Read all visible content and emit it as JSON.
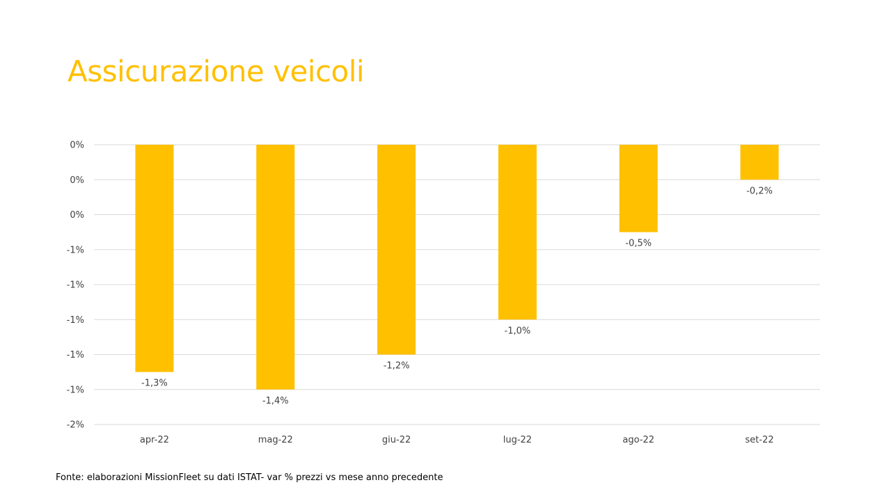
{
  "slide": {
    "title": "Assicurazione veicoli",
    "source": "Fonte: elaborazioni MissionFleet su dati ISTAT- var % prezzi vs mese anno precedente"
  },
  "chart_data": {
    "type": "bar",
    "title": "Assicurazione veicoli",
    "xlabel": "",
    "ylabel": "",
    "categories": [
      "apr-22",
      "mag-22",
      "giu-22",
      "lug-22",
      "ago-22",
      "set-22"
    ],
    "values": [
      -1.3,
      -1.4,
      -1.2,
      -1.0,
      -0.5,
      -0.2
    ],
    "data_labels": [
      "-1,3%",
      "-1,4%",
      "-1,2%",
      "-1,0%",
      "-0,5%",
      "-0,2%"
    ],
    "ylim": [
      -1.6,
      0
    ],
    "y_ticks": [
      0,
      -0.2,
      -0.4,
      -0.6,
      -0.8,
      -1.0,
      -1.2,
      -1.4,
      -1.6
    ],
    "y_tick_labels": [
      "0%",
      "0%",
      "0%",
      "-1%",
      "-1%",
      "-1%",
      "-1%",
      "-1%",
      "-2%"
    ],
    "grid": true,
    "legend": "none",
    "bar_color": "#FFC000",
    "grid_color": "#D9D9D9"
  }
}
